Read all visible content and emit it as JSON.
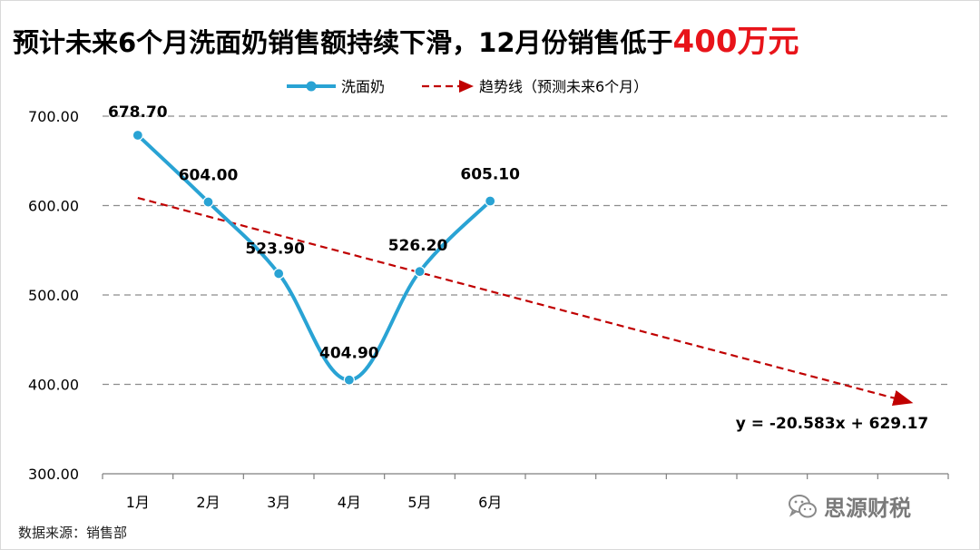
{
  "title": {
    "main": "预计未来6个月洗面奶销售额持续下滑，12月份销售低于",
    "accent": "400万元",
    "accent_color": "#e8141a"
  },
  "chart_data": {
    "type": "line",
    "categories": [
      "1月",
      "2月",
      "3月",
      "4月",
      "5月",
      "6月"
    ],
    "total_slots": 12,
    "series": [
      {
        "name": "洗面奶",
        "values": [
          678.7,
          604.0,
          523.9,
          404.9,
          526.2,
          605.1
        ],
        "labels": [
          "678.70",
          "604.00",
          "523.90",
          "404.90",
          "526.20",
          "605.10"
        ],
        "color": "#29a3d4",
        "style": "smooth-line-with-markers"
      },
      {
        "name": "趋势线（预测未来6个月）",
        "style": "dashed-arrow",
        "color": "#c00000",
        "slope": -20.583,
        "intercept": 629.17,
        "x_range": [
          1,
          12
        ]
      }
    ],
    "equation": "y = -20.583x + 629.17",
    "ylim": [
      300,
      700
    ],
    "yticks": [
      "700.00",
      "600.00",
      "500.00",
      "400.00",
      "300.00"
    ],
    "grid": true,
    "legend_position": "top-center"
  },
  "source": "数据来源：销售部",
  "watermark": "思源财税",
  "watermark_icon": "wechat-icon"
}
